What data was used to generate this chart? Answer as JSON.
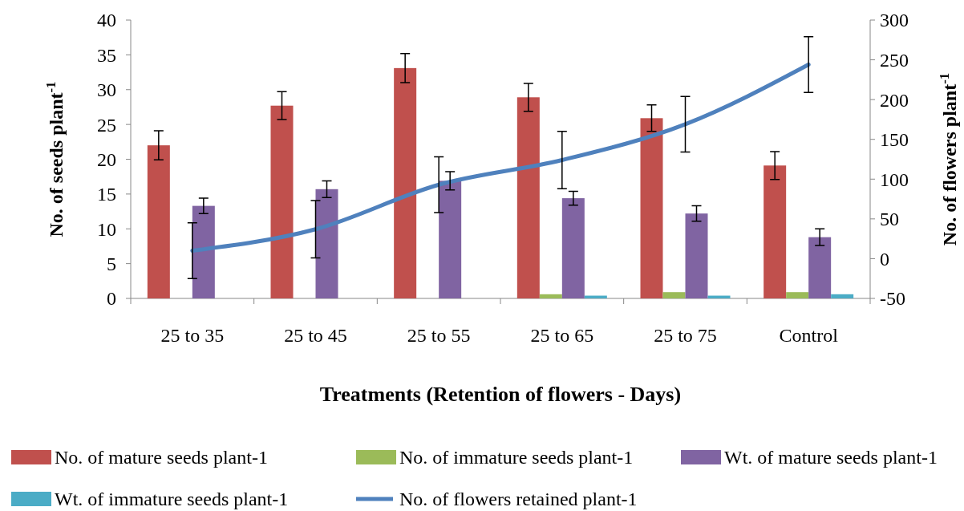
{
  "chart_data": {
    "type": "bar",
    "xlabel": "Treatments (Retention of flowers - Days)",
    "ylabel": "No. of seeds plant$^{-1}$",
    "y2label": "No. of flowers plant$^{-1}$",
    "categories": [
      "25 to 35",
      "25 to 45",
      "25 to 55",
      "25 to 65",
      "25 to 75",
      "Control"
    ],
    "ylim": [
      0,
      40
    ],
    "yticks": [
      0,
      5,
      10,
      15,
      20,
      25,
      30,
      35,
      40
    ],
    "y2lim": [
      -50,
      300
    ],
    "y2ticks": [
      -50,
      0,
      50,
      100,
      150,
      200,
      250,
      300
    ],
    "legend": "bottom",
    "marker": "none",
    "line_style": "solid",
    "series": [
      {
        "name": "No. of mature seeds plant-1",
        "color": "#c0504d",
        "values": [
          22,
          27.7,
          33.1,
          28.9,
          25.9,
          19.1
        ],
        "errors": [
          2.1,
          2,
          2.1,
          2,
          1.9,
          2
        ]
      },
      {
        "name": "No. of immature seeds plant-1",
        "color": "#9bbb59",
        "values": [
          0,
          0,
          0,
          0.6,
          0.9,
          0.9
        ]
      },
      {
        "name": "Wt. of mature seeds plant-1",
        "color": "#8064a2",
        "values": [
          13.3,
          15.7,
          16.9,
          14.4,
          12.2,
          8.8
        ],
        "errors": [
          1.1,
          1.2,
          1.3,
          1,
          1.1,
          1.2
        ]
      },
      {
        "name": "Wt. of immature seeds plant-1",
        "color": "#4bacc6",
        "values": [
          0,
          0,
          0,
          0.4,
          0.4,
          0.6
        ]
      },
      {
        "name": "No. of flowers retained  plant-1",
        "type": "line",
        "axis": "y2",
        "color": "#4f81bd",
        "values": [
          10,
          37,
          93,
          124,
          169,
          244
        ],
        "errors": [
          35,
          36,
          35,
          36,
          35,
          35
        ]
      }
    ]
  }
}
